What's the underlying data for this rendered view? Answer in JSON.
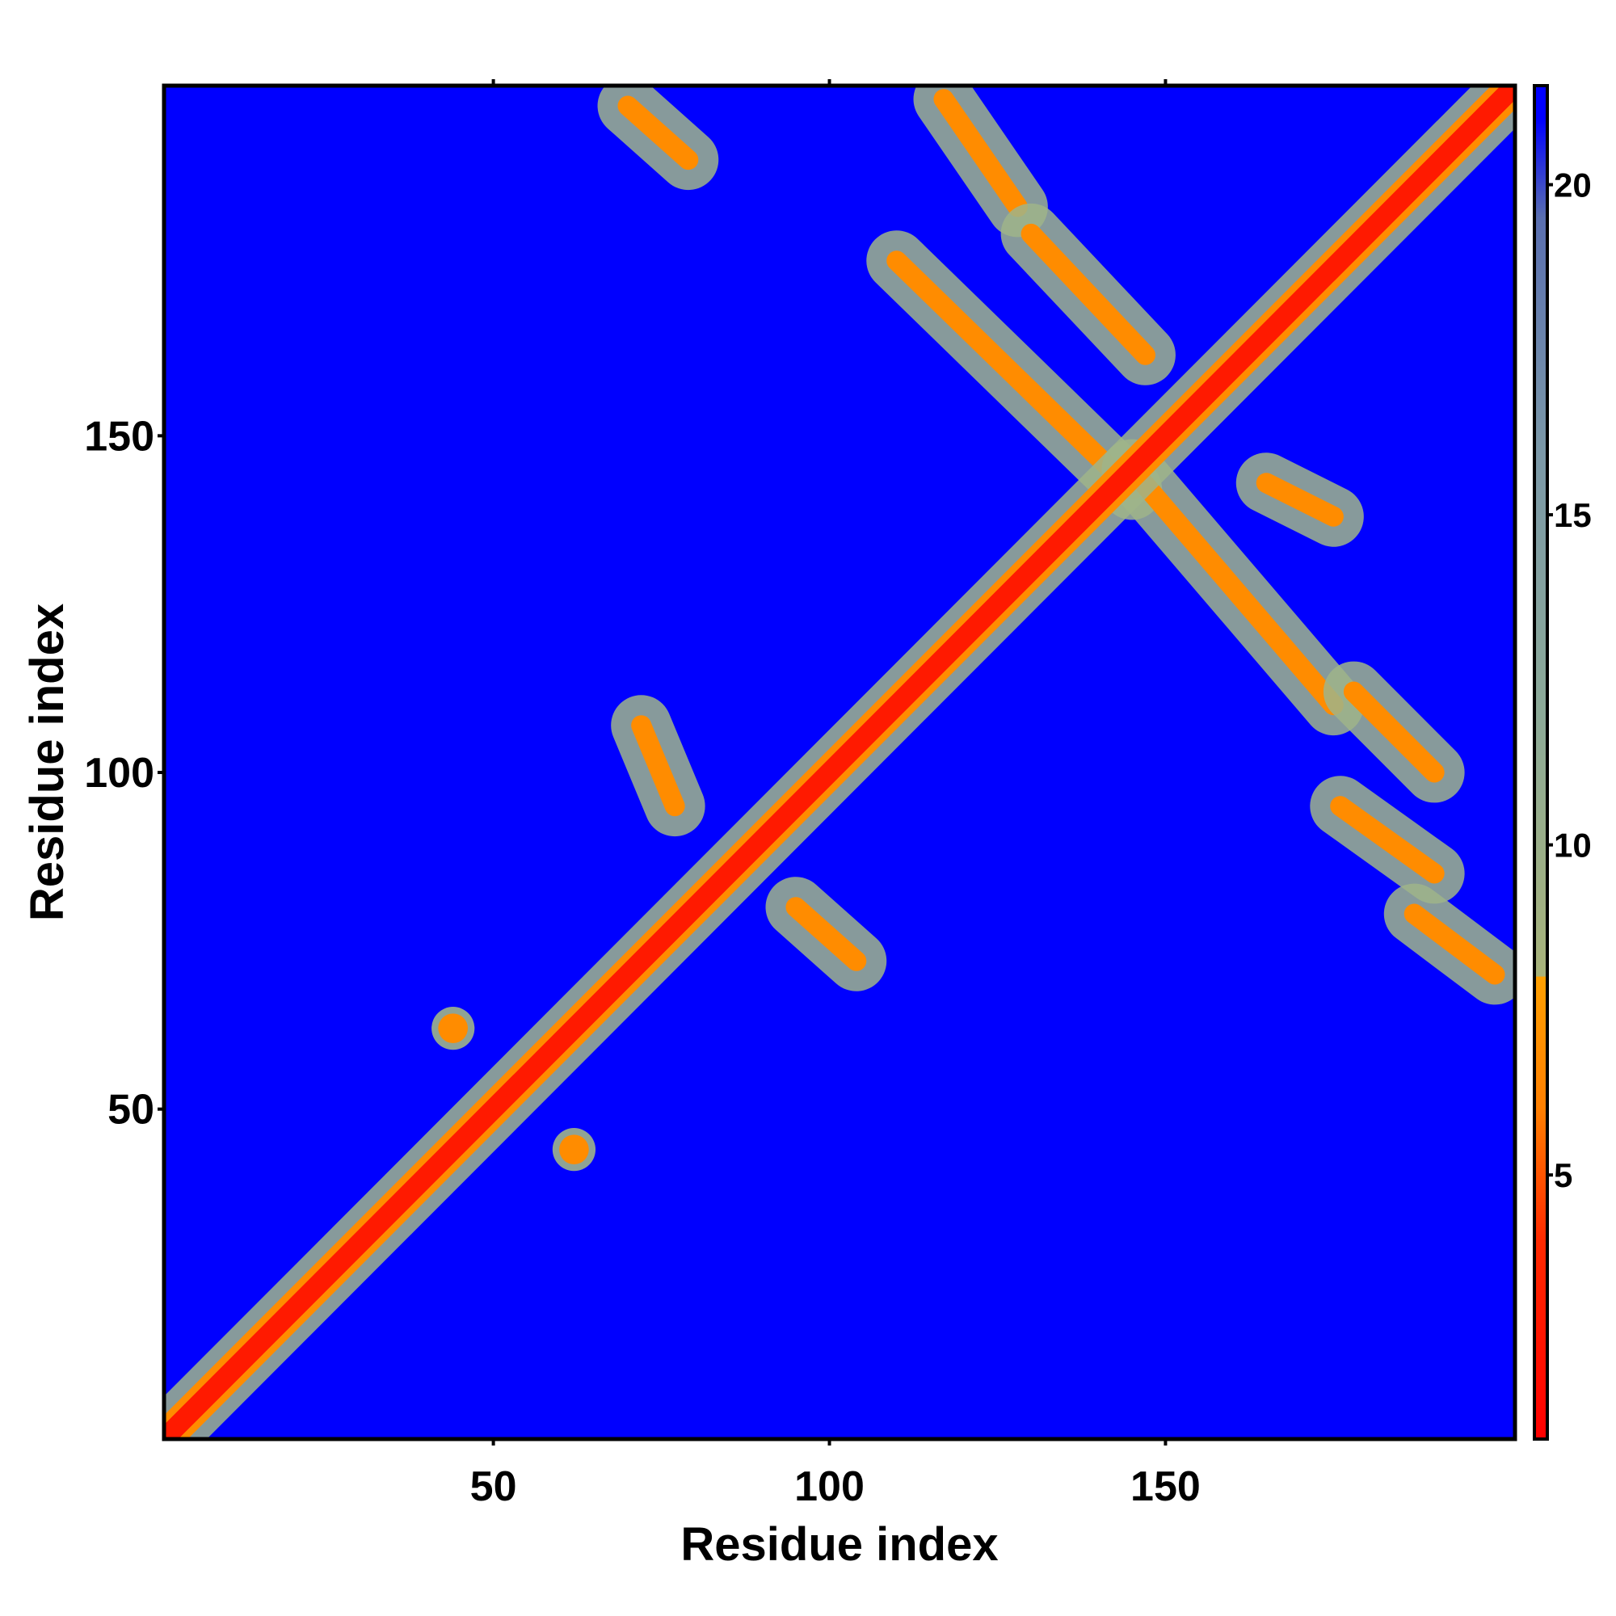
{
  "chart_data": {
    "type": "heatmap",
    "title": "",
    "xlabel": "Residue index",
    "ylabel": "Residue index",
    "xlim": [
      1,
      202
    ],
    "ylim": [
      1,
      202
    ],
    "xticks": [
      50,
      100,
      150
    ],
    "yticks": [
      50,
      100,
      150
    ],
    "colorbar": {
      "range": [
        1,
        21.5
      ],
      "ticks": [
        5,
        10,
        15,
        20
      ],
      "colors": [
        {
          "stop": 1,
          "color": "#ff0000"
        },
        {
          "stop": 4,
          "color": "#ff2a00"
        },
        {
          "stop": 6,
          "color": "#ff7f00"
        },
        {
          "stop": 8,
          "color": "#ffa000"
        },
        {
          "stop": 8.01,
          "color": "#a8b37a"
        },
        {
          "stop": 12,
          "color": "#8caa98"
        },
        {
          "stop": 16,
          "color": "#7b98a8"
        },
        {
          "stop": 19.5,
          "color": "#5a6fb0"
        },
        {
          "stop": 21,
          "color": "#0000ff"
        }
      ]
    },
    "background_color": "#0000ff",
    "description_of_values": "pairwise residue distance (Å-like scale); strong diagonal band, off-diagonal contact bands",
    "features": {
      "main_diagonal": [
        [
          1,
          1
        ],
        [
          202,
          202
        ]
      ],
      "antidiagonal_bands": [
        [
          [
            70,
            199
          ],
          [
            79,
            191
          ]
        ],
        [
          [
            117,
            200
          ],
          [
            128,
            184
          ]
        ],
        [
          [
            130,
            180
          ],
          [
            147,
            162
          ]
        ],
        [
          [
            110,
            176
          ],
          [
            145,
            142
          ]
        ],
        [
          [
            145,
            145
          ],
          [
            175,
            110
          ]
        ],
        [
          [
            165,
            143
          ],
          [
            175,
            138
          ]
        ],
        [
          [
            178,
            112
          ],
          [
            190,
            100
          ]
        ],
        [
          [
            176,
            95
          ],
          [
            190,
            85
          ]
        ],
        [
          [
            187,
            79
          ],
          [
            199,
            70
          ]
        ],
        [
          [
            72,
            107
          ],
          [
            77,
            95
          ]
        ],
        [
          [
            95,
            80
          ],
          [
            104,
            72
          ]
        ]
      ],
      "isolated_contacts": [
        [
          44,
          62
        ],
        [
          62,
          44
        ]
      ]
    }
  }
}
